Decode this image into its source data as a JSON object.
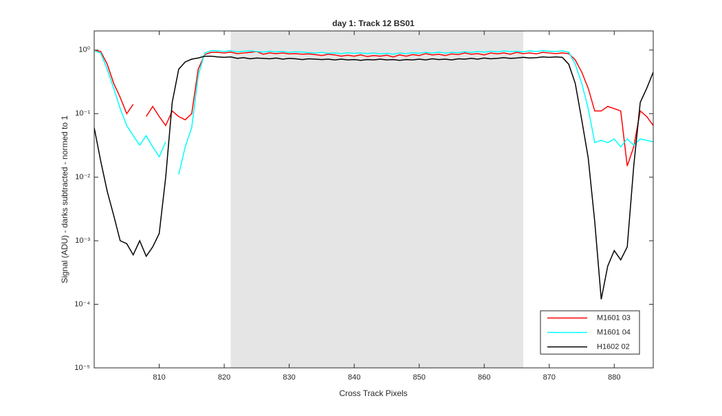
{
  "chart_data": {
    "type": "line",
    "title": "day 1: Track 12  BS01",
    "x_label": "Cross Track Pixels",
    "y_label": "Signal (ADU) - darks subtracted - normed to 1",
    "log_y": true,
    "legend_position": "lower right",
    "shaded_region": [
      821,
      866
    ],
    "shaded_color": "#e5e5e5",
    "x": [
      800,
      801,
      802,
      803,
      804,
      805,
      806,
      807,
      808,
      809,
      810,
      811,
      812,
      813,
      814,
      815,
      816,
      817,
      818,
      819,
      820,
      821,
      822,
      823,
      824,
      825,
      826,
      827,
      828,
      829,
      830,
      831,
      832,
      833,
      834,
      835,
      836,
      837,
      838,
      839,
      840,
      841,
      842,
      843,
      844,
      845,
      846,
      847,
      848,
      849,
      850,
      851,
      852,
      853,
      854,
      855,
      856,
      857,
      858,
      859,
      860,
      861,
      862,
      863,
      864,
      865,
      866,
      867,
      868,
      869,
      870,
      871,
      872,
      873,
      874,
      875,
      876,
      877,
      878,
      879,
      880,
      881,
      882,
      883,
      884,
      885,
      886
    ],
    "xlim": [
      800,
      886
    ],
    "xticks": [
      810,
      820,
      830,
      840,
      850,
      860,
      870,
      880
    ],
    "ylim": [
      1e-05,
      2
    ],
    "yticks": [
      {
        "value": 1e-05,
        "label": "10⁻⁵"
      },
      {
        "value": 0.0001,
        "label": "10⁻⁴"
      },
      {
        "value": 0.001,
        "label": "10⁻³"
      },
      {
        "value": 0.01,
        "label": "10⁻²"
      },
      {
        "value": 0.1,
        "label": "10⁻¹"
      },
      {
        "value": 1,
        "label": "10⁰"
      }
    ],
    "series": [
      {
        "name": "M1601 03",
        "color": "#ff0000",
        "values": [
          1.0,
          0.95,
          0.6,
          0.3,
          0.18,
          0.1,
          0.14,
          null,
          0.09,
          0.13,
          0.09,
          0.065,
          0.11,
          0.09,
          0.08,
          0.1,
          0.5,
          0.85,
          0.92,
          0.92,
          0.9,
          0.93,
          0.88,
          0.9,
          0.92,
          0.95,
          0.86,
          0.9,
          0.88,
          0.9,
          0.87,
          0.88,
          0.86,
          0.87,
          0.85,
          0.82,
          0.86,
          0.84,
          0.8,
          0.83,
          0.8,
          0.84,
          0.79,
          0.82,
          0.8,
          0.83,
          0.78,
          0.84,
          0.8,
          0.85,
          0.82,
          0.88,
          0.84,
          0.86,
          0.82,
          0.87,
          0.85,
          0.9,
          0.86,
          0.88,
          0.84,
          0.9,
          0.87,
          0.9,
          0.86,
          0.92,
          0.88,
          0.9,
          0.87,
          0.92,
          0.9,
          0.88,
          0.9,
          0.88,
          0.7,
          0.45,
          0.25,
          0.11,
          0.11,
          0.13,
          0.12,
          0.11,
          0.015,
          0.03,
          0.11,
          0.09,
          0.065
        ]
      },
      {
        "name": "M1601 04",
        "color": "#00ffff",
        "values": [
          0.98,
          0.9,
          0.5,
          0.25,
          0.12,
          0.065,
          0.045,
          0.032,
          0.045,
          0.03,
          0.021,
          0.036,
          null,
          0.011,
          0.03,
          0.06,
          0.4,
          0.9,
          0.98,
          0.97,
          0.95,
          0.98,
          0.94,
          0.96,
          0.97,
          0.95,
          0.93,
          0.96,
          0.94,
          0.95,
          0.92,
          0.94,
          0.93,
          0.91,
          0.9,
          0.92,
          0.89,
          0.9,
          0.88,
          0.91,
          0.89,
          0.9,
          0.88,
          0.9,
          0.87,
          0.89,
          0.86,
          0.9,
          0.88,
          0.91,
          0.89,
          0.92,
          0.9,
          0.93,
          0.9,
          0.92,
          0.91,
          0.94,
          0.92,
          0.95,
          0.93,
          0.96,
          0.94,
          0.97,
          0.95,
          0.96,
          0.94,
          0.97,
          0.95,
          0.98,
          0.96,
          0.95,
          0.97,
          0.93,
          0.6,
          0.3,
          0.12,
          0.035,
          0.038,
          0.035,
          0.04,
          0.03,
          0.04,
          0.032,
          0.04,
          0.038,
          0.036
        ]
      },
      {
        "name": "H1602 02",
        "color": "#000000",
        "values": [
          0.06,
          0.018,
          0.006,
          0.0025,
          0.001,
          0.0009,
          0.0006,
          0.001,
          0.00057,
          0.0008,
          0.0013,
          0.01,
          0.15,
          0.5,
          0.65,
          0.72,
          0.75,
          0.8,
          0.8,
          0.78,
          0.77,
          0.78,
          0.74,
          0.76,
          0.73,
          0.75,
          0.74,
          0.73,
          0.75,
          0.72,
          0.74,
          0.73,
          0.71,
          0.73,
          0.72,
          0.71,
          0.72,
          0.7,
          0.72,
          0.7,
          0.71,
          0.69,
          0.71,
          0.7,
          0.72,
          0.7,
          0.71,
          0.69,
          0.71,
          0.7,
          0.72,
          0.7,
          0.73,
          0.71,
          0.72,
          0.7,
          0.73,
          0.72,
          0.74,
          0.72,
          0.75,
          0.73,
          0.74,
          0.76,
          0.74,
          0.75,
          0.77,
          0.75,
          0.76,
          0.78,
          0.77,
          0.78,
          0.77,
          0.6,
          0.3,
          0.08,
          0.02,
          0.002,
          0.00012,
          0.0004,
          0.0007,
          0.0005,
          0.0008,
          0.015,
          0.15,
          0.25,
          0.45
        ]
      }
    ]
  }
}
